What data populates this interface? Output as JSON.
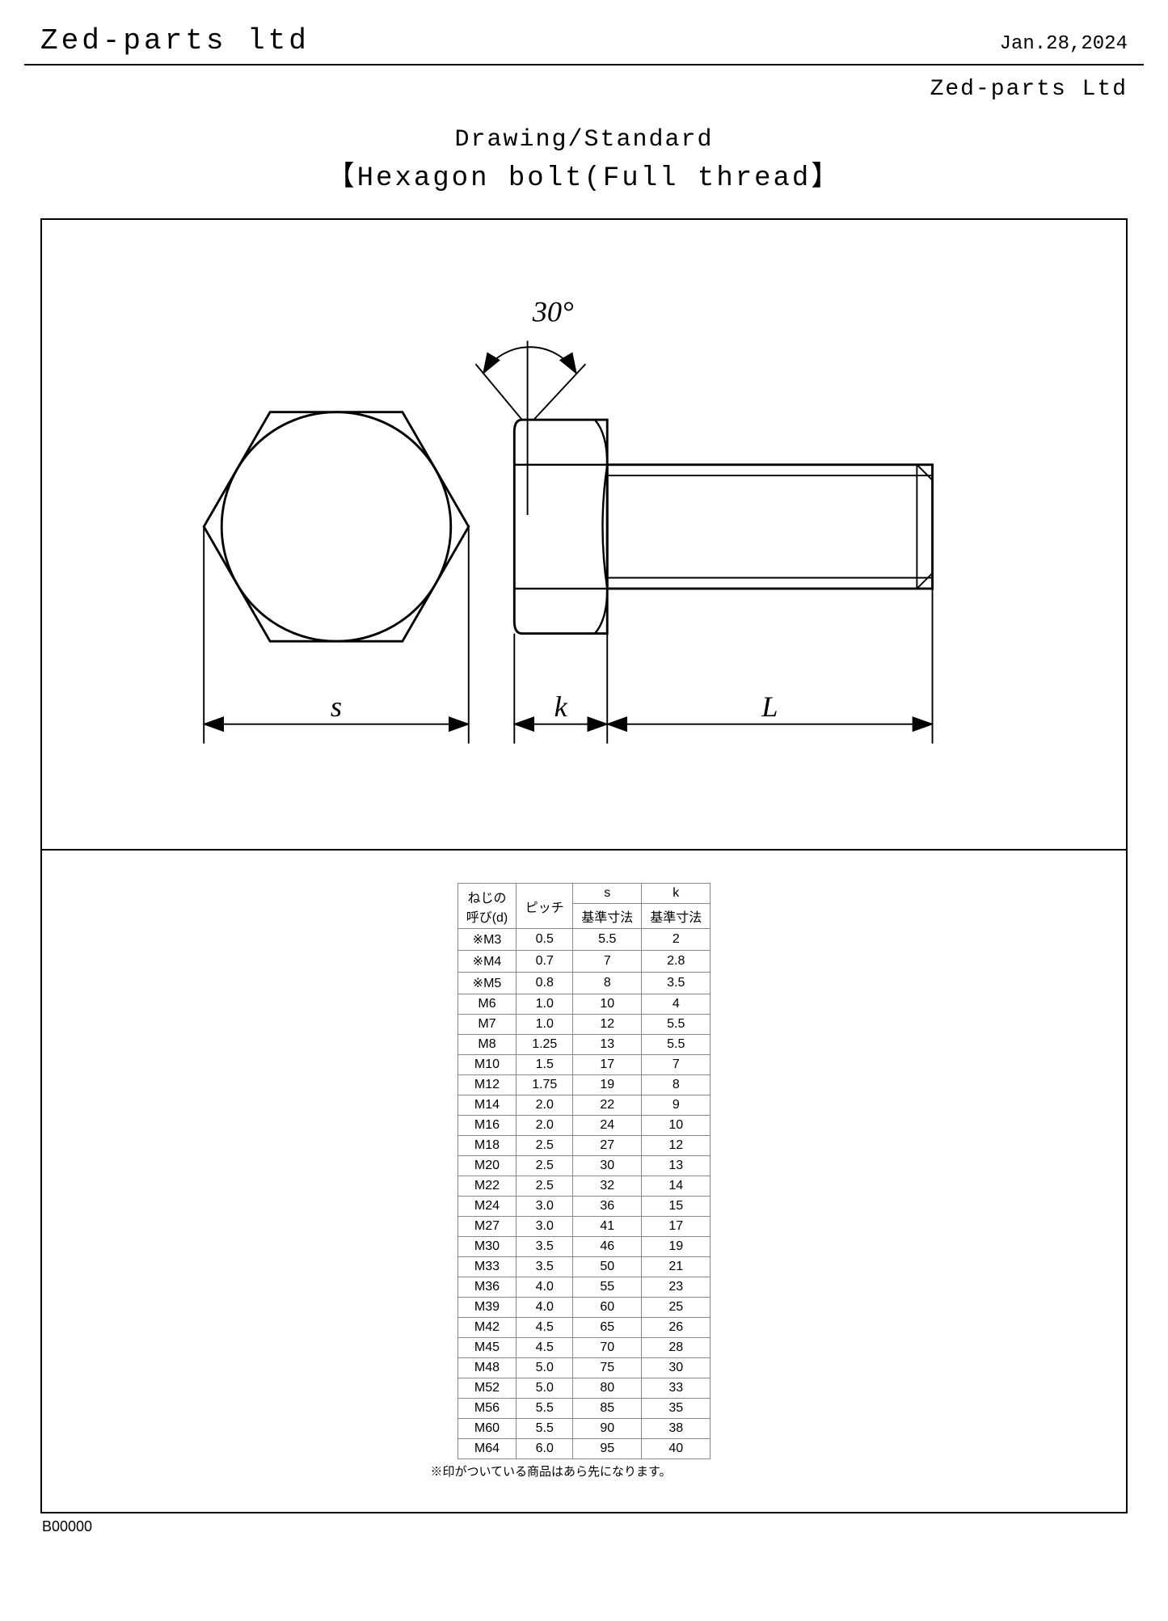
{
  "header": {
    "company": "Zed-parts ltd",
    "date": "Jan.28,2024",
    "company_right": "Zed-parts Ltd"
  },
  "title": {
    "line1": "Drawing/Standard",
    "line2": "【Hexagon bolt(Full thread】"
  },
  "drawing": {
    "angle_label": "30°",
    "dim_s": "s",
    "dim_k": "k",
    "dim_L": "L"
  },
  "table": {
    "headers": {
      "d_line1": "ねじの",
      "d_line2": "呼び(d)",
      "pitch": "ピッチ",
      "s": "s",
      "s_sub": "基準寸法",
      "k": "k",
      "k_sub": "基準寸法"
    },
    "rows": [
      [
        "※M3",
        "0.5",
        "5.5",
        "2"
      ],
      [
        "※M4",
        "0.7",
        "7",
        "2.8"
      ],
      [
        "※M5",
        "0.8",
        "8",
        "3.5"
      ],
      [
        "M6",
        "1.0",
        "10",
        "4"
      ],
      [
        "M7",
        "1.0",
        "12",
        "5.5"
      ],
      [
        "M8",
        "1.25",
        "13",
        "5.5"
      ],
      [
        "M10",
        "1.5",
        "17",
        "7"
      ],
      [
        "M12",
        "1.75",
        "19",
        "8"
      ],
      [
        "M14",
        "2.0",
        "22",
        "9"
      ],
      [
        "M16",
        "2.0",
        "24",
        "10"
      ],
      [
        "M18",
        "2.5",
        "27",
        "12"
      ],
      [
        "M20",
        "2.5",
        "30",
        "13"
      ],
      [
        "M22",
        "2.5",
        "32",
        "14"
      ],
      [
        "M24",
        "3.0",
        "36",
        "15"
      ],
      [
        "M27",
        "3.0",
        "41",
        "17"
      ],
      [
        "M30",
        "3.5",
        "46",
        "19"
      ],
      [
        "M33",
        "3.5",
        "50",
        "21"
      ],
      [
        "M36",
        "4.0",
        "55",
        "23"
      ],
      [
        "M39",
        "4.0",
        "60",
        "25"
      ],
      [
        "M42",
        "4.5",
        "65",
        "26"
      ],
      [
        "M45",
        "4.5",
        "70",
        "28"
      ],
      [
        "M48",
        "5.0",
        "75",
        "30"
      ],
      [
        "M52",
        "5.0",
        "80",
        "33"
      ],
      [
        "M56",
        "5.5",
        "85",
        "35"
      ],
      [
        "M60",
        "5.5",
        "90",
        "38"
      ],
      [
        "M64",
        "6.0",
        "95",
        "40"
      ]
    ],
    "note": "※印がついている商品はあら先になります。"
  },
  "footer": {
    "code": "B00000"
  },
  "style": {
    "stroke": "#000000",
    "stroke_thin": 2,
    "stroke_thick": 3
  }
}
